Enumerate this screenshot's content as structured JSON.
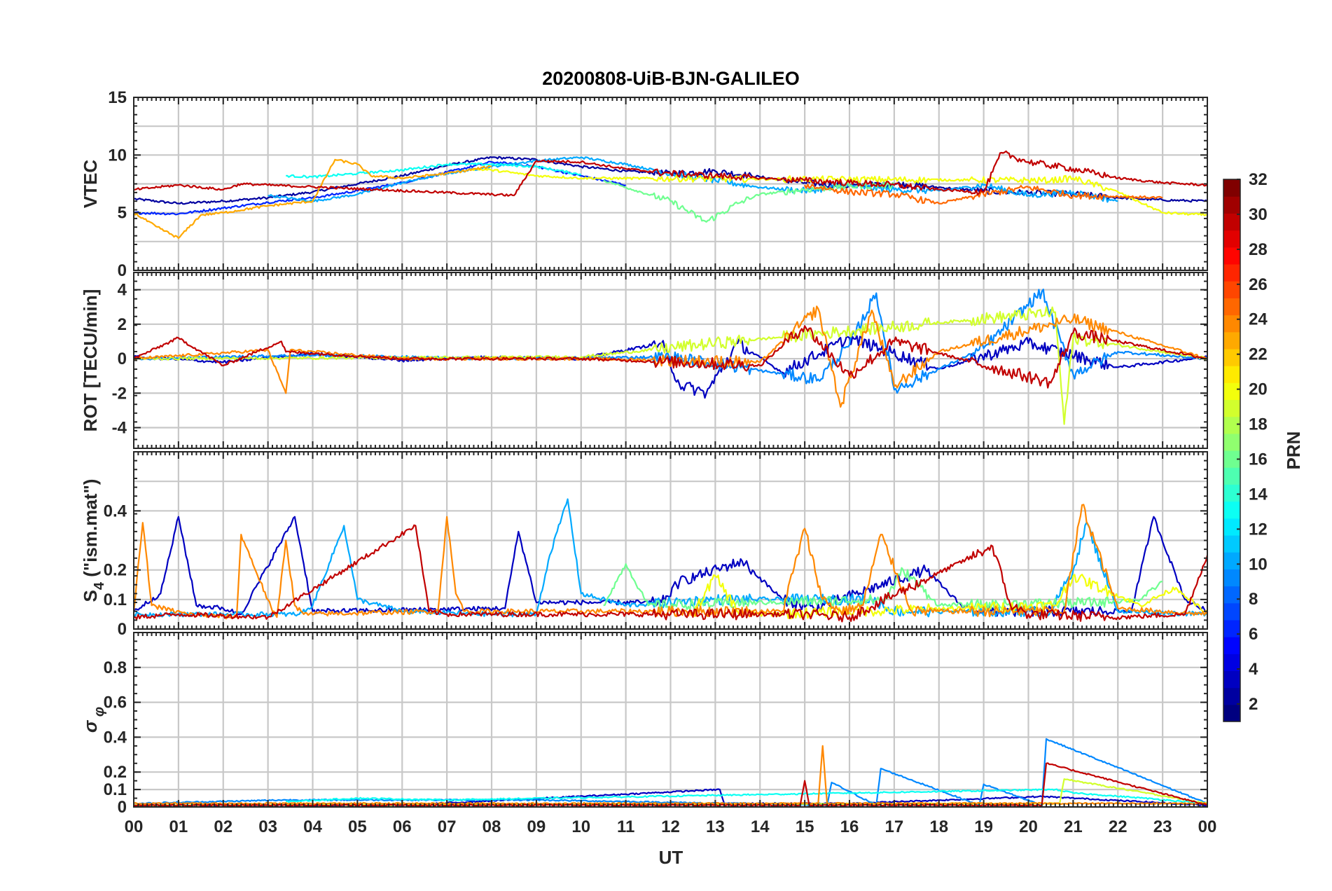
{
  "chart_data": {
    "type": "line",
    "title": "20200808-UiB-BJN-GALILEO",
    "xlabel": "UT",
    "x_tick_labels": [
      "00",
      "01",
      "02",
      "03",
      "04",
      "05",
      "06",
      "07",
      "08",
      "09",
      "10",
      "11",
      "12",
      "13",
      "14",
      "15",
      "16",
      "17",
      "18",
      "19",
      "20",
      "21",
      "22",
      "23",
      "00"
    ],
    "xlim": [
      0,
      24
    ],
    "colorbar": {
      "label": "PRN",
      "range": [
        1,
        32
      ],
      "ticks": [
        "2",
        "4",
        "6",
        "8",
        "10",
        "12",
        "14",
        "16",
        "18",
        "20",
        "22",
        "24",
        "26",
        "28",
        "30",
        "32"
      ],
      "colormap": "jet"
    },
    "panels": [
      {
        "name": "vtec",
        "ylabel": "VTEC",
        "ylim": [
          0,
          15
        ],
        "yticks": [
          "0",
          "5",
          "10",
          "15"
        ],
        "series": [
          {
            "prn": 2,
            "x": [
              0,
              1,
              2,
              3,
              4,
              5,
              6,
              7,
              8,
              9,
              10,
              11,
              12,
              13,
              14,
              15,
              16,
              17,
              18,
              19,
              20,
              21,
              22,
              23,
              24
            ],
            "y": [
              6.2,
              5.8,
              6.0,
              6.3,
              6.8,
              7.5,
              8.2,
              9.1,
              9.8,
              9.6,
              9.0,
              8.6,
              8.4,
              8.6,
              8.1,
              7.6,
              7.3,
              7.5,
              7.2,
              6.9,
              6.7,
              6.6,
              6.3,
              6.1,
              6.0
            ]
          },
          {
            "prn": 6,
            "x": [
              0,
              1,
              2,
              3,
              4,
              5,
              6,
              7,
              8,
              9,
              10,
              11
            ],
            "y": [
              5.0,
              4.9,
              5.4,
              5.9,
              6.3,
              6.9,
              7.6,
              8.5,
              9.4,
              9.0,
              8.2,
              7.4
            ]
          },
          {
            "prn": 10,
            "x": [
              3,
              4,
              5,
              6,
              7,
              8,
              9,
              10,
              11,
              12,
              13,
              14,
              15,
              16,
              17,
              18,
              19,
              20,
              21,
              22
            ],
            "y": [
              6.5,
              6.0,
              6.6,
              7.6,
              8.4,
              9.0,
              9.5,
              9.8,
              9.2,
              8.4,
              7.8,
              7.2,
              6.9,
              7.3,
              7.0,
              6.9,
              7.4,
              6.5,
              6.8,
              6.0
            ]
          },
          {
            "prn": 13,
            "x": [
              3.4,
              4,
              5,
              6,
              7,
              8,
              9,
              10
            ],
            "y": [
              8.2,
              8.1,
              8.4,
              8.7,
              9.2,
              9.2,
              9.0,
              8.3
            ]
          },
          {
            "prn": 16,
            "x": [
              10.5,
              11,
              12,
              12.8,
              13.5,
              14,
              15,
              16,
              17
            ],
            "y": [
              7.8,
              7.2,
              6.0,
              4.2,
              5.8,
              6.6,
              7.0,
              7.3,
              7.4
            ]
          },
          {
            "prn": 20,
            "x": [
              7.5,
              8,
              9,
              10,
              20.5,
              21,
              22,
              23,
              24
            ],
            "y": [
              8.8,
              8.7,
              8.2,
              8.0,
              7.8,
              8.0,
              6.8,
              5.0,
              4.8
            ]
          },
          {
            "prn": 23,
            "x": [
              0,
              0.5,
              1,
              1.5,
              2,
              3,
              4,
              4.5,
              5,
              5.3,
              6,
              7,
              8
            ],
            "y": [
              5.0,
              3.8,
              2.8,
              4.8,
              5.0,
              5.6,
              6.0,
              9.6,
              9.2,
              8.2,
              8.0,
              8.4,
              9.0
            ]
          },
          {
            "prn": 25,
            "x": [
              15,
              16,
              17,
              18,
              19,
              20,
              21,
              22,
              23
            ],
            "y": [
              7.4,
              6.8,
              6.6,
              5.8,
              6.6,
              7.2,
              6.5,
              6.4,
              6.3
            ]
          },
          {
            "prn": 30,
            "x": [
              0,
              1,
              2,
              2.4,
              8.5,
              9,
              10,
              11,
              12,
              13,
              14,
              15,
              16,
              17,
              18,
              19,
              19.4,
              20,
              21,
              22,
              23,
              24
            ],
            "y": [
              7.0,
              7.4,
              7.0,
              7.5,
              6.5,
              9.5,
              9.4,
              8.8,
              8.4,
              8.2,
              8.0,
              7.8,
              7.6,
              7.4,
              7.0,
              6.8,
              10.2,
              9.4,
              8.8,
              8.0,
              7.6,
              7.4
            ]
          }
        ]
      },
      {
        "name": "rot",
        "ylabel": "ROT [TECU/min]",
        "ylim": [
          -5.2,
          5.0
        ],
        "yticks": [
          "-4",
          "-2",
          "0",
          "2",
          "4"
        ],
        "series": [
          {
            "prn": 3,
            "x": [
              0,
              2,
              4,
              6,
              8,
              10,
              11.8,
              12.2,
              12.8,
              13.5,
              14.5,
              16,
              18,
              20,
              22,
              24
            ],
            "y": [
              0.1,
              -0.2,
              0.3,
              -0.1,
              0.1,
              0,
              0.9,
              -1.5,
              -2.0,
              0.9,
              -0.8,
              1.2,
              -0.6,
              0.9,
              -0.5,
              0.1
            ]
          },
          {
            "prn": 9,
            "x": [
              0,
              4,
              8,
              12,
              15.3,
              16,
              16.6,
              17,
              19,
              20.3,
              21,
              22,
              24
            ],
            "y": [
              0,
              0.2,
              0,
              0.1,
              -1.2,
              0.8,
              3.8,
              -1.8,
              0.6,
              3.9,
              -0.9,
              0.4,
              0
            ]
          },
          {
            "prn": 19,
            "x": [
              0,
              10,
              13,
              20.6,
              20.8,
              21,
              24
            ],
            "y": [
              0,
              0.1,
              0.9,
              2.7,
              -3.8,
              1.2,
              0
            ]
          },
          {
            "prn": 24,
            "x": [
              0,
              3,
              3.4,
              3.5,
              6,
              10,
              14,
              15.3,
              15.8,
              16.5,
              17,
              18,
              21,
              24
            ],
            "y": [
              0,
              0.5,
              -2.0,
              0.5,
              0,
              0,
              -0.2,
              2.9,
              -2.8,
              2.8,
              -1.6,
              0.4,
              2.3,
              0
            ]
          },
          {
            "prn": 30,
            "x": [
              0,
              1,
              2,
              3.3,
              3.4,
              6,
              10,
              14,
              15,
              16,
              17,
              20.5,
              21,
              24
            ],
            "y": [
              0,
              1.2,
              -0.4,
              1.0,
              0.4,
              0,
              0,
              -0.4,
              1.9,
              -1.0,
              1.0,
              -1.4,
              1.5,
              0
            ]
          }
        ]
      },
      {
        "name": "s4",
        "ylabel": "S4 (\"ism.mat\")",
        "ylim": [
          0,
          0.6
        ],
        "yticks": [
          "0",
          "0.1",
          "0.2",
          "0.4"
        ],
        "series": [
          {
            "prn": 3,
            "x": [
              0,
              0.6,
              1.0,
              1.4,
              2.0,
              2.4,
              3.6,
              4,
              8.3,
              8.6,
              9,
              11.8,
              12.2,
              13.6,
              14.5,
              15.2,
              17.7,
              18.5,
              19,
              22.3,
              22.8,
              23.5,
              24
            ],
            "y": [
              0.06,
              0.12,
              0.38,
              0.08,
              0.07,
              0.05,
              0.38,
              0.06,
              0.07,
              0.33,
              0.09,
              0.09,
              0.16,
              0.23,
              0.1,
              0.07,
              0.2,
              0.08,
              0.06,
              0.06,
              0.38,
              0.1,
              0.06
            ]
          },
          {
            "prn": 10,
            "x": [
              0,
              3.7,
              4,
              4.7,
              5,
              6,
              8,
              9,
              9.3,
              9.7,
              10,
              11,
              13,
              16.5,
              17,
              20.5,
              21,
              21.3,
              22,
              24
            ],
            "y": [
              0.05,
              0.05,
              0.08,
              0.35,
              0.1,
              0.06,
              0.05,
              0.05,
              0.25,
              0.44,
              0.12,
              0.08,
              0.1,
              0.1,
              0.06,
              0.06,
              0.2,
              0.36,
              0.06,
              0.05
            ]
          },
          {
            "prn": 16,
            "x": [
              10.5,
              11,
              11.5,
              16.8,
              17.2,
              18,
              21.5,
              22.5,
              23
            ],
            "y": [
              0.08,
              0.22,
              0.08,
              0.1,
              0.2,
              0.08,
              0.09,
              0.1,
              0.16
            ]
          },
          {
            "prn": 20,
            "x": [
              12.5,
              13,
              13.5,
              14,
              20.6,
              21,
              22.5,
              23.3,
              24
            ],
            "y": [
              0.05,
              0.18,
              0.06,
              0.05,
              0.08,
              0.18,
              0.08,
              0.14,
              0.05
            ]
          },
          {
            "prn": 24,
            "x": [
              0,
              0.2,
              0.4,
              1.2,
              2.3,
              2.4,
              3.1,
              3.2,
              3.4,
              3.6,
              3.8,
              6.8,
              7.0,
              7.2,
              7.4,
              14.5,
              15,
              15.4,
              15.8,
              16.3,
              16.7,
              17.4,
              20.8,
              21.2,
              22,
              24
            ],
            "y": [
              0.06,
              0.36,
              0.08,
              0.05,
              0.04,
              0.32,
              0.06,
              0.04,
              0.3,
              0.08,
              0.05,
              0.06,
              0.38,
              0.12,
              0.06,
              0.06,
              0.34,
              0.1,
              0.06,
              0.08,
              0.32,
              0.06,
              0.06,
              0.42,
              0.07,
              0.05
            ]
          },
          {
            "prn": 30,
            "x": [
              0,
              1,
              3,
              6.3,
              6.6,
              7,
              12,
              15,
              16,
              19.2,
              19.6,
              20,
              22,
              23.5,
              24
            ],
            "y": [
              0.04,
              0.05,
              0.04,
              0.35,
              0.06,
              0.05,
              0.05,
              0.05,
              0.04,
              0.28,
              0.08,
              0.05,
              0.04,
              0.05,
              0.25
            ]
          }
        ]
      },
      {
        "name": "sigma_phi",
        "ylabel": "σφ",
        "ylim": [
          0,
          1.0
        ],
        "yticks": [
          "0",
          "0.1",
          "0.2",
          "0.4",
          "0.6",
          "0.8"
        ],
        "series": [
          {
            "prn": 3,
            "x": [
              0,
              6,
              13.1,
              13.2,
              16,
              20.3,
              24
            ],
            "y": [
              0.01,
              0.01,
              0.1,
              0.02,
              0.02,
              0.06,
              0.01
            ]
          },
          {
            "prn": 9,
            "x": [
              0,
              3.4,
              9,
              15.5,
              15.6,
              16.6,
              16.7,
              18.9,
              19.0,
              20.3,
              20.4,
              24
            ],
            "y": [
              0.02,
              0.04,
              0.04,
              0.01,
              0.14,
              0.01,
              0.22,
              0.01,
              0.13,
              0.01,
              0.39,
              0.02
            ]
          },
          {
            "prn": 13,
            "x": [
              3.4,
              5,
              7,
              9.2,
              20.6,
              21,
              22.6,
              24
            ],
            "y": [
              0.03,
              0.05,
              0.04,
              0.05,
              0.1,
              0.08,
              0.05,
              0.02
            ]
          },
          {
            "prn": 19,
            "x": [
              0,
              20.7,
              20.8,
              24
            ],
            "y": [
              0.01,
              0.02,
              0.16,
              0.02
            ]
          },
          {
            "prn": 24,
            "x": [
              0,
              15.3,
              15.4,
              15.5,
              24
            ],
            "y": [
              0.02,
              0.02,
              0.35,
              0.02,
              0.02
            ]
          },
          {
            "prn": 30,
            "x": [
              0,
              14.9,
              15.0,
              15.1,
              20.3,
              20.4,
              24
            ],
            "y": [
              0.01,
              0.01,
              0.15,
              0.01,
              0.01,
              0.25,
              0.01
            ]
          }
        ]
      }
    ]
  }
}
